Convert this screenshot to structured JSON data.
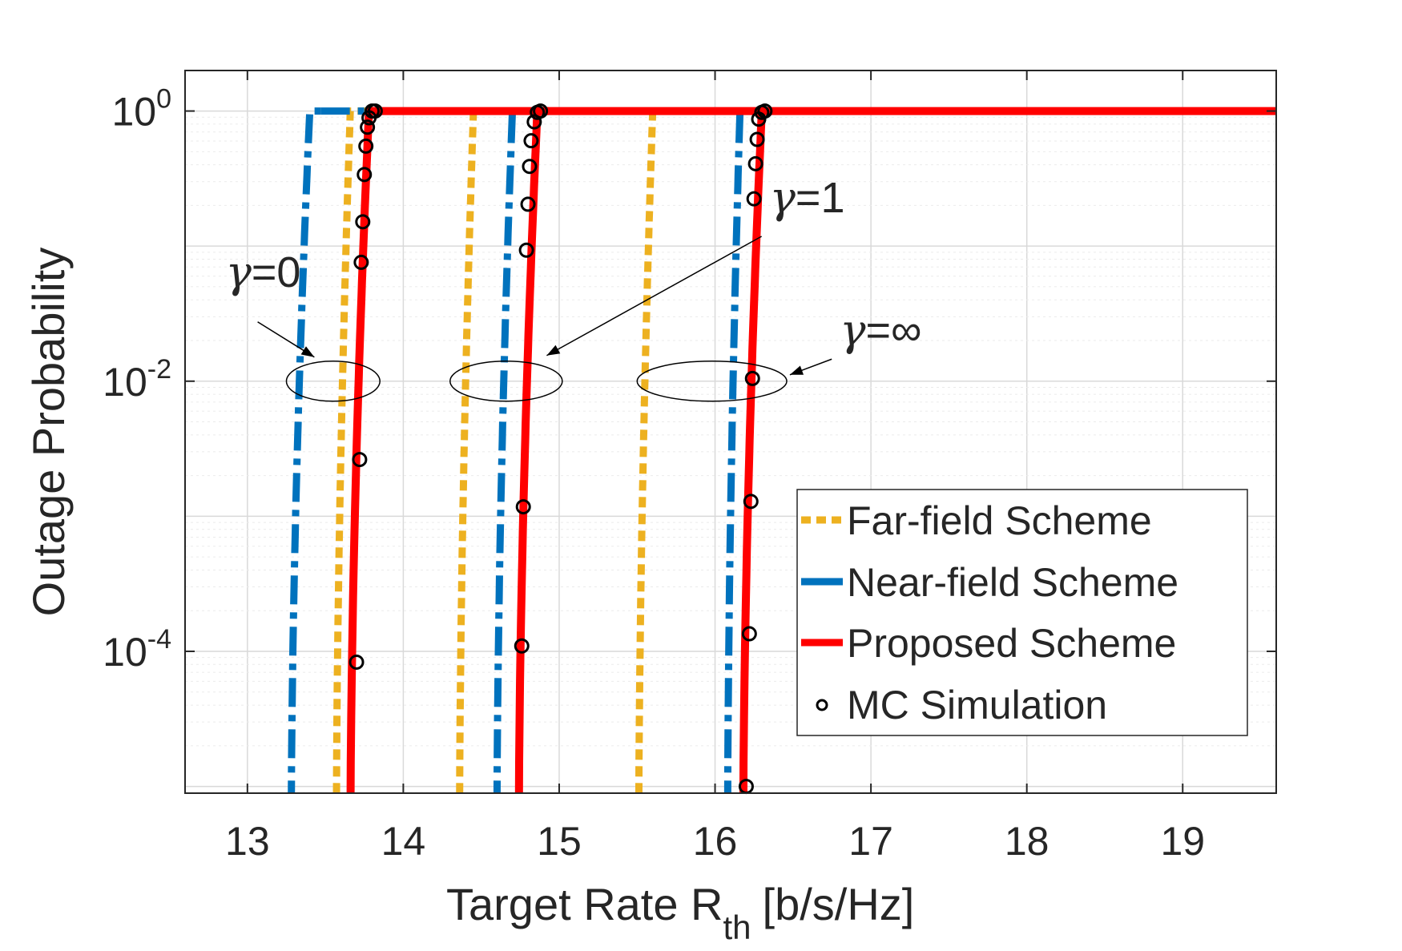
{
  "chart_data": {
    "type": "line",
    "title": "",
    "xlabel": "Target Rate R",
    "xlabel_sub": "th",
    "xlabel_unit": "[b/s/Hz]",
    "ylabel": "Outage Probability",
    "yscale": "log",
    "xlim": [
      12.6,
      19.6
    ],
    "ylim_log10": [
      -5.05,
      0.3
    ],
    "grid": true,
    "legend_position": "bottom-right",
    "xticks": [
      13,
      14,
      15,
      16,
      17,
      18,
      19
    ],
    "yticks": [
      {
        "base": "10",
        "exp": "0",
        "log10": 0
      },
      {
        "base": "10",
        "exp": "-2",
        "log10": -2
      },
      {
        "base": "10",
        "exp": "-4",
        "log10": -4
      }
    ],
    "colors": {
      "far": "#EDB120",
      "near": "#0072BD",
      "proposed": "#FF0000",
      "mc": "#000000",
      "grid": "#d9d9d9",
      "axis": "#262626"
    },
    "series": [
      {
        "name": "Far-field Scheme",
        "key": "far",
        "style": "dotted",
        "groups": [
          {
            "gamma": "0",
            "x_bottom": 13.57,
            "x_top": 13.66
          },
          {
            "gamma": "1",
            "x_bottom": 14.36,
            "x_top": 14.45
          },
          {
            "gamma": "inf",
            "x_bottom": 15.51,
            "x_top": 15.6
          }
        ]
      },
      {
        "name": "Near-field Scheme",
        "key": "near",
        "style": "dashdot",
        "groups": [
          {
            "gamma": "0",
            "x_bottom": 13.28,
            "x_top": 13.4
          },
          {
            "gamma": "1",
            "x_bottom": 14.6,
            "x_top": 14.7
          },
          {
            "gamma": "inf",
            "x_bottom": 16.08,
            "x_top": 16.16
          }
        ]
      },
      {
        "name": "Proposed Scheme",
        "key": "proposed",
        "style": "solid",
        "groups": [
          {
            "gamma": "0",
            "x_bottom": 13.66,
            "x_top": 13.78
          },
          {
            "gamma": "1",
            "x_bottom": 14.74,
            "x_top": 14.86
          },
          {
            "gamma": "inf",
            "x_bottom": 16.18,
            "x_top": 16.3
          }
        ]
      }
    ],
    "mc_simulation": {
      "name": "MC Simulation",
      "points": [
        [
          13.7,
          -4.08
        ],
        [
          13.72,
          -2.58
        ],
        [
          13.73,
          -1.12
        ],
        [
          13.74,
          -0.82
        ],
        [
          13.75,
          -0.47
        ],
        [
          13.76,
          -0.26
        ],
        [
          13.77,
          -0.12
        ],
        [
          13.78,
          -0.05
        ],
        [
          13.8,
          0.0
        ],
        [
          13.82,
          0.0
        ],
        [
          14.76,
          -3.96
        ],
        [
          14.77,
          -2.93
        ],
        [
          14.79,
          -1.03
        ],
        [
          14.8,
          -0.69
        ],
        [
          14.81,
          -0.41
        ],
        [
          14.82,
          -0.22
        ],
        [
          14.84,
          -0.08
        ],
        [
          14.86,
          -0.01
        ],
        [
          14.88,
          0.0
        ],
        [
          16.2,
          -5.0
        ],
        [
          16.22,
          -3.87
        ],
        [
          16.23,
          -2.89
        ],
        [
          16.24,
          -1.98
        ],
        [
          16.25,
          -0.65
        ],
        [
          16.26,
          -0.39
        ],
        [
          16.27,
          -0.21
        ],
        [
          16.28,
          -0.06
        ],
        [
          16.3,
          -0.01
        ],
        [
          16.32,
          0.0
        ]
      ]
    },
    "annotations": [
      {
        "symbol": "γ",
        "value": "=0",
        "target_x": 13.45,
        "target_log10": -2.0,
        "text_x": 12.86,
        "text_log10": -1.3
      },
      {
        "symbol": "γ",
        "value": "=1",
        "target_x": 14.62,
        "target_log10": -2.0,
        "text_x": 16.35,
        "text_log10": -0.75
      },
      {
        "symbol": "γ",
        "value": "=∞",
        "target_x": 15.94,
        "target_log10": -2.0,
        "text_x": 16.8,
        "text_log10": -1.73
      }
    ],
    "ellipse_bounds": [
      {
        "x_min": 13.25,
        "x_max": 13.85
      },
      {
        "x_min": 14.3,
        "x_max": 15.02
      },
      {
        "x_min": 15.5,
        "x_max": 16.46
      }
    ]
  }
}
